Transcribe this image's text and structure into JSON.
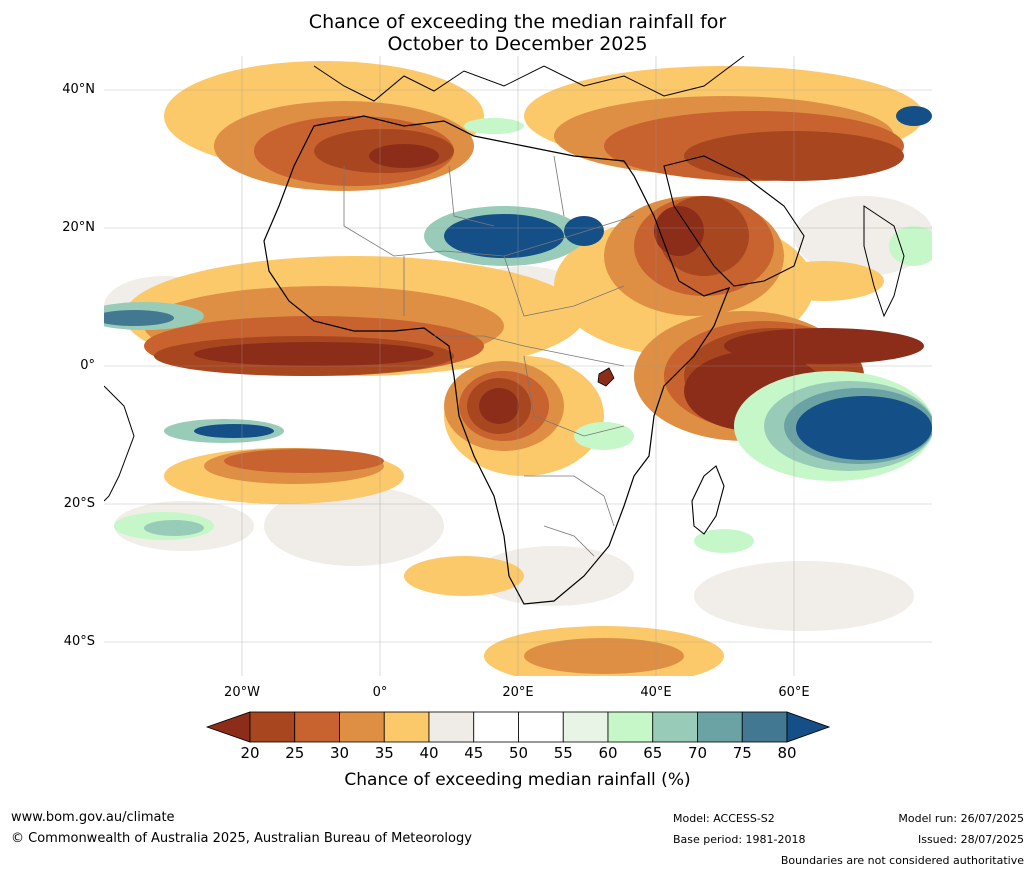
{
  "title_line1": "Chance of exceeding the median rainfall for",
  "title_line2": "October to December 2025",
  "lat_labels": [
    "40°N",
    "20°N",
    "0°",
    "20°S",
    "40°S"
  ],
  "lon_labels": [
    "20°W",
    "0°",
    "20°E",
    "40°E",
    "60°E"
  ],
  "colorbar": {
    "ticks": [
      "20",
      "25",
      "30",
      "35",
      "40",
      "45",
      "50",
      "55",
      "60",
      "65",
      "70",
      "75",
      "80"
    ],
    "colors": [
      "#8c2d19",
      "#a8461f",
      "#c8622f",
      "#de8f44",
      "#fcc96a",
      "#efebe6",
      "#ffffff",
      "#ffffff",
      "#e8f5e6",
      "#c6f7c9",
      "#98ccb8",
      "#6ba2a4",
      "#437893",
      "#154f87"
    ],
    "label": "Chance of exceeding median rainfall (%)"
  },
  "footer": {
    "website": "www.bom.gov.au/climate",
    "copyright": "© Commonwealth of Australia 2025, Australian Bureau of Meteorology",
    "model": "Model: ACCESS-S2",
    "base_period": "Base period: 1981-2018",
    "model_run": "Model run: 26/07/2025",
    "issued": "Issued: 28/07/2025",
    "disclaimer": "Boundaries are not considered authoritative"
  }
}
